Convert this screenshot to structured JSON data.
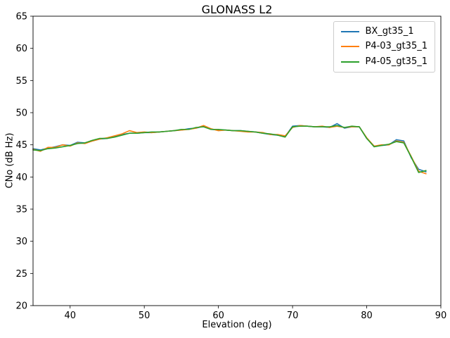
{
  "chart_data": {
    "type": "line",
    "title": "GLONASS L2",
    "xlabel": "Elevation (deg)",
    "ylabel": "CNo (dB Hz)",
    "xlim": [
      35,
      90
    ],
    "ylim": [
      20,
      65
    ],
    "xticks": [
      40,
      50,
      60,
      70,
      80,
      90
    ],
    "yticks": [
      20,
      25,
      30,
      35,
      40,
      45,
      50,
      55,
      60,
      65
    ],
    "grid": false,
    "legend_position": "upper right",
    "x": [
      35,
      36,
      37,
      38,
      39,
      40,
      41,
      42,
      43,
      44,
      45,
      46,
      47,
      48,
      49,
      50,
      51,
      52,
      53,
      54,
      55,
      56,
      57,
      58,
      59,
      60,
      61,
      62,
      63,
      64,
      65,
      66,
      67,
      68,
      69,
      70,
      71,
      72,
      73,
      74,
      75,
      76,
      77,
      78,
      79,
      80,
      81,
      82,
      83,
      84,
      85,
      86,
      87,
      88
    ],
    "series": [
      {
        "name": "BX_gt35_1",
        "color": "#1f77b4",
        "values": [
          44.4,
          44.2,
          44.5,
          44.7,
          45.0,
          44.9,
          45.4,
          45.3,
          45.6,
          45.9,
          46.0,
          46.3,
          46.6,
          46.8,
          46.8,
          46.9,
          46.9,
          47.0,
          47.1,
          47.2,
          47.3,
          47.5,
          47.6,
          47.9,
          47.4,
          47.3,
          47.3,
          47.2,
          47.2,
          47.1,
          47.0,
          46.8,
          46.6,
          46.5,
          46.3,
          47.9,
          48.0,
          47.9,
          47.8,
          47.8,
          47.7,
          48.3,
          47.6,
          47.8,
          47.8,
          46.0,
          44.8,
          44.9,
          45.0,
          45.8,
          45.6,
          43.0,
          41.2,
          40.8
        ]
      },
      {
        "name": "P4-03_gt35_1",
        "color": "#ff7f0e",
        "values": [
          44.3,
          44.0,
          44.6,
          44.6,
          45.0,
          44.8,
          45.3,
          45.2,
          45.6,
          45.9,
          46.1,
          46.4,
          46.7,
          47.2,
          46.9,
          47.0,
          46.9,
          47.0,
          47.1,
          47.2,
          47.3,
          47.4,
          47.6,
          48.0,
          47.5,
          47.2,
          47.3,
          47.2,
          47.1,
          47.0,
          47.0,
          46.9,
          46.6,
          46.6,
          46.4,
          47.7,
          48.0,
          47.9,
          47.8,
          47.9,
          47.7,
          47.9,
          47.7,
          47.8,
          47.8,
          46.1,
          44.8,
          45.0,
          45.0,
          45.6,
          45.4,
          43.2,
          40.9,
          40.5
        ]
      },
      {
        "name": "P4-05_gt35_1",
        "color": "#2ca02c",
        "values": [
          44.2,
          44.1,
          44.4,
          44.5,
          44.7,
          44.9,
          45.2,
          45.3,
          45.7,
          46.0,
          46.0,
          46.2,
          46.5,
          46.8,
          46.8,
          46.9,
          47.0,
          47.0,
          47.1,
          47.2,
          47.4,
          47.4,
          47.7,
          47.8,
          47.4,
          47.4,
          47.3,
          47.2,
          47.2,
          47.1,
          47.0,
          46.8,
          46.7,
          46.5,
          46.2,
          47.8,
          47.9,
          47.9,
          47.8,
          47.8,
          47.8,
          48.0,
          47.7,
          47.9,
          47.8,
          46.0,
          44.7,
          44.9,
          45.1,
          45.5,
          45.3,
          43.1,
          40.7,
          41.0
        ]
      }
    ]
  }
}
